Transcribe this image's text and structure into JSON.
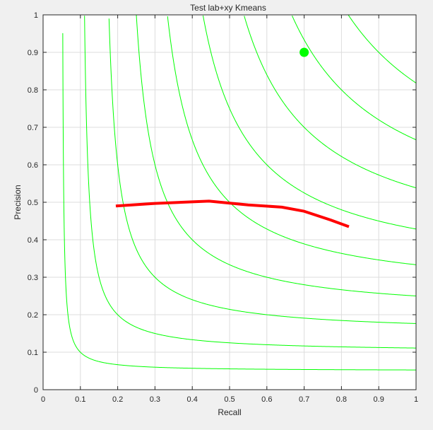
{
  "chart_data": {
    "type": "line",
    "title": "Test lab+xy Kmeans",
    "xlabel": "Recall",
    "ylabel": "Precision",
    "xlim": [
      0,
      1
    ],
    "ylim": [
      0,
      1
    ],
    "grid": true,
    "x_ticks": [
      "0",
      "0.1",
      "0.2",
      "0.3",
      "0.4",
      "0.5",
      "0.6",
      "0.7",
      "0.8",
      "0.9",
      "1"
    ],
    "y_ticks": [
      "0",
      "0.1",
      "0.2",
      "0.3",
      "0.4",
      "0.5",
      "0.6",
      "0.7",
      "0.8",
      "0.9",
      "1"
    ],
    "iso_f_curves": {
      "color": "#00ff00",
      "f_values": [
        0.1,
        0.2,
        0.3,
        0.4,
        0.5,
        0.6,
        0.7,
        0.8,
        0.9
      ]
    },
    "series": [
      {
        "color": "#ff0000",
        "x": [
          0.195,
          0.3,
          0.445,
          0.55,
          0.64,
          0.7,
          0.77,
          0.82
        ],
        "y": [
          0.49,
          0.497,
          0.503,
          0.493,
          0.487,
          0.476,
          0.453,
          0.435
        ]
      }
    ],
    "marker": {
      "color": "#00ff00",
      "x": 0.7,
      "y": 0.9
    }
  }
}
